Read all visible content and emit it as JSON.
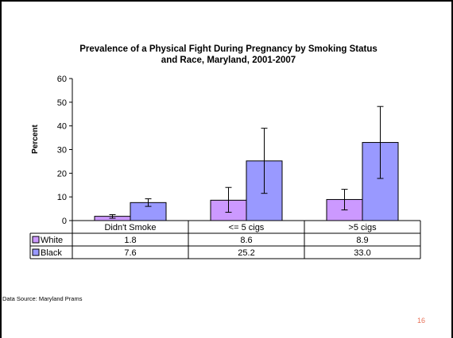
{
  "chart_data": {
    "type": "bar",
    "title": "Prevalence of a Physical Fight During Pregnancy by Smoking Status and Race, Maryland, 2001-2007",
    "title_lines": [
      "Prevalence of a Physical Fight During Pregnancy by Smoking Status",
      "and Race, Maryland, 2001-2007"
    ],
    "xlabel": "",
    "ylabel": "Percent",
    "ylim": [
      0,
      60
    ],
    "yticks": [
      0,
      10,
      20,
      30,
      40,
      50,
      60
    ],
    "categories": [
      "Didn't Smoke",
      "<= 5 cigs",
      ">5 cigs"
    ],
    "series": [
      {
        "name": "White",
        "color": "#cc99ff",
        "values": [
          1.8,
          8.6,
          8.9
        ],
        "values_text": [
          "1.8",
          "8.6",
          "8.9"
        ],
        "error_low": [
          1.0,
          3.5,
          4.5
        ],
        "error_high": [
          2.5,
          14.0,
          13.2
        ]
      },
      {
        "name": "Black",
        "color": "#9999ff",
        "values": [
          7.6,
          25.2,
          33.0
        ],
        "values_text": [
          "7.6",
          "25.2",
          "33.0"
        ],
        "error_low": [
          6.0,
          11.5,
          17.8
        ],
        "error_high": [
          9.2,
          39.0,
          48.2
        ]
      }
    ],
    "grid": false,
    "legend": "data-table"
  },
  "footer": {
    "source": "Data Source: Maryland Prams",
    "page_number": "16"
  }
}
